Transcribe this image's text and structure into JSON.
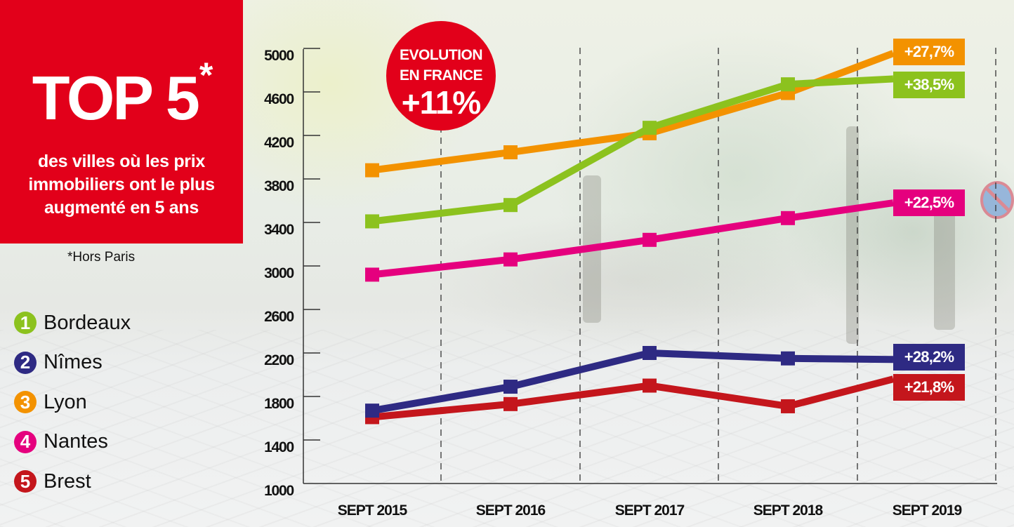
{
  "panel": {
    "title": "TOP 5",
    "title_mark": "*",
    "subtitle_lines": [
      "des villes où les prix",
      "immobiliers ont le plus",
      "augmenté en 5 ans"
    ],
    "footnote": "*Hors Paris",
    "background_color": "#e2001a"
  },
  "legend": [
    {
      "rank": "1",
      "city": "Bordeaux",
      "color": "#8cc21e"
    },
    {
      "rank": "2",
      "city": "Nîmes",
      "color": "#2e2a83"
    },
    {
      "rank": "3",
      "city": "Lyon",
      "color": "#f39200"
    },
    {
      "rank": "4",
      "city": "Nantes",
      "color": "#e5007e"
    },
    {
      "rank": "5",
      "city": "Brest",
      "color": "#c4161c"
    }
  ],
  "france_badge": {
    "line1": "EVOLUTION",
    "line2": "EN FRANCE",
    "value": "+11%"
  },
  "chart_data": {
    "type": "line",
    "title": "TOP 5 des villes où les prix immobiliers ont le plus augmenté en 5 ans",
    "xlabel": "",
    "ylabel": "",
    "categories": [
      "SEPT 2015",
      "SEPT 2016",
      "SEPT 2017",
      "SEPT 2018",
      "SEPT 2019"
    ],
    "yticks": [
      1000,
      1400,
      1800,
      2200,
      2600,
      3000,
      3400,
      3800,
      4200,
      4600,
      5000
    ],
    "ylim": [
      1000,
      5000
    ],
    "grid": "vertical dashed separators between years",
    "legend_position": "left",
    "series": [
      {
        "name": "Bordeaux",
        "rank": 1,
        "color": "#8cc21e",
        "values": [
          3410,
          3560,
          4270,
          4670,
          4720
        ],
        "end_label": "+38,5%"
      },
      {
        "name": "Nîmes",
        "rank": 2,
        "color": "#2e2a83",
        "values": [
          1670,
          1890,
          2200,
          2150,
          2140
        ],
        "end_label": "+28,2%"
      },
      {
        "name": "Lyon",
        "rank": 3,
        "color": "#f39200",
        "values": [
          3880,
          4045,
          4220,
          4590,
          4955
        ],
        "end_label": "+27,7%"
      },
      {
        "name": "Nantes",
        "rank": 4,
        "color": "#e5007e",
        "values": [
          2920,
          3060,
          3240,
          3440,
          3580
        ],
        "end_label": "+22,5%"
      },
      {
        "name": "Brest",
        "rank": 5,
        "color": "#c4161c",
        "values": [
          1610,
          1730,
          1900,
          1710,
          1960
        ],
        "end_label": "+21,8%"
      }
    ],
    "annotations": [
      "EVOLUTION EN FRANCE +11%",
      "*Hors Paris"
    ]
  }
}
